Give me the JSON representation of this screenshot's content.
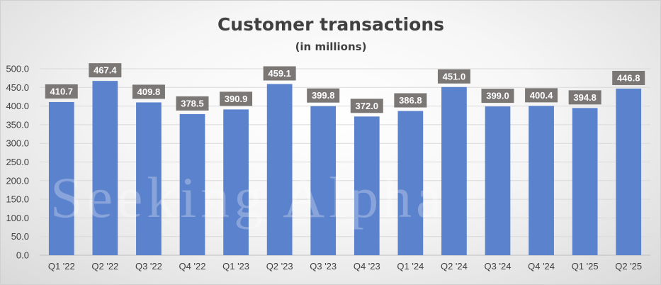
{
  "chart_data": {
    "type": "bar",
    "title": "Customer transactions",
    "subtitle": "(in millions)",
    "xlabel": "",
    "ylabel": "",
    "categories": [
      "Q1 '22",
      "Q2 '22",
      "Q3 '22",
      "Q4 '22",
      "Q1 '23",
      "Q2 '23",
      "Q3 '23",
      "Q4 '23",
      "Q1 '24",
      "Q2 '24",
      "Q3 '24",
      "Q4 '24",
      "Q1 '25",
      "Q2 '25"
    ],
    "values": [
      410.7,
      467.4,
      409.8,
      378.5,
      390.9,
      459.1,
      399.8,
      372.0,
      386.8,
      451.0,
      399.0,
      400.4,
      394.8,
      446.8
    ],
    "data_labels": [
      "410.7",
      "467.4",
      "409.8",
      "378.5",
      "390.9",
      "459.1",
      "399.8",
      "372.0",
      "386.8",
      "451.0",
      "399.0",
      "400.4",
      "394.8",
      "446.8"
    ],
    "ylim": [
      0,
      500
    ],
    "yticks": [
      "0.0",
      "50.0",
      "100.0",
      "150.0",
      "200.0",
      "250.0",
      "300.0",
      "350.0",
      "400.0",
      "450.0",
      "500.0"
    ],
    "ytick_values": [
      0,
      50,
      100,
      150,
      200,
      250,
      300,
      350,
      400,
      450,
      500
    ],
    "grid": true,
    "legend": "none",
    "colors": {
      "bar": "#5b82cc",
      "data_label_bg": "#7a7775",
      "data_label_text": "#ffffff",
      "grid": "#d9d9d9",
      "axis": "#bfbfbf",
      "text": "#404040"
    }
  },
  "watermark": "Seeking Alpha"
}
